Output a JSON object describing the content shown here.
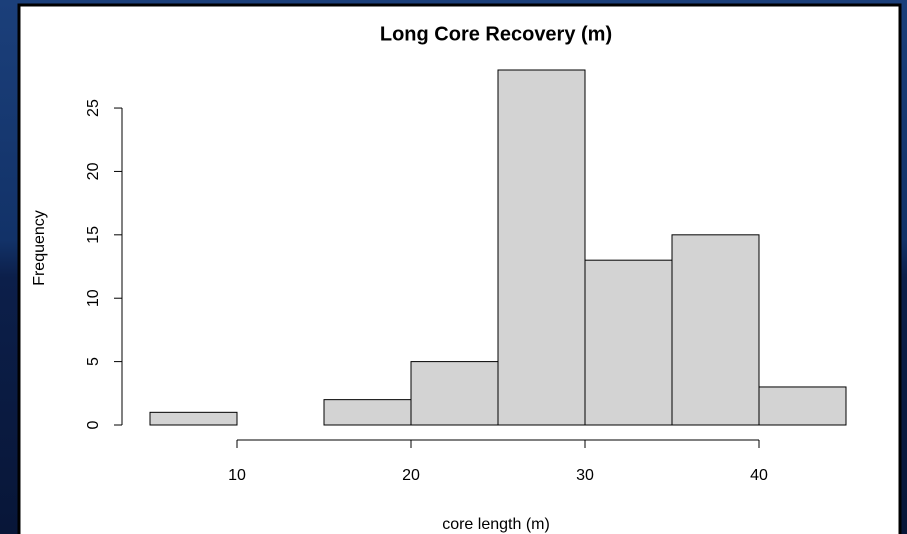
{
  "chart_data": {
    "type": "histogram",
    "title": "Long Core Recovery (m)",
    "x_label": "core length (m)",
    "y_label": "Frequency",
    "bins": [
      5,
      10,
      15,
      20,
      25,
      30,
      35,
      40,
      45
    ],
    "values": [
      1,
      0,
      2,
      5,
      28,
      13,
      15,
      3
    ],
    "color": "#d3d3d3",
    "xlim": [
      5,
      45
    ],
    "xticks": [
      10,
      20,
      30,
      40
    ],
    "ylim": [
      0,
      28
    ],
    "yticks": [
      0,
      5,
      10,
      15,
      20,
      25
    ]
  }
}
